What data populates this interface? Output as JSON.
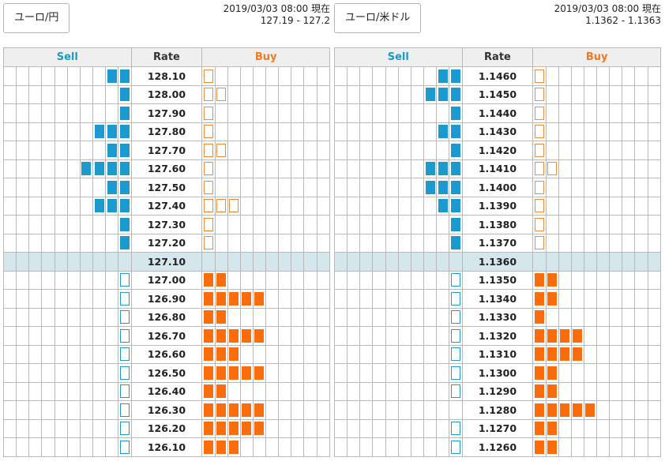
{
  "headers": {
    "sell": "Sell",
    "rate": "Rate",
    "buy": "Buy"
  },
  "colors": {
    "sell": "#1b9ad0",
    "buy": "#fb6c0c",
    "mid_row": "#d5e7ec",
    "header_bg": "#efefef"
  },
  "panels": [
    {
      "name": "eurjpy",
      "label": "ユーロ/円",
      "timestamp": "2019/03/03 08:00 現在",
      "bidask": "127.19 - 127.2",
      "rows": [
        {
          "rate": "128.10",
          "sell": 2,
          "buy": 1,
          "style": "upper"
        },
        {
          "rate": "128.00",
          "sell": 1,
          "buy": 2,
          "style": "upper"
        },
        {
          "rate": "127.90",
          "sell": 1,
          "buy": 1,
          "style": "upper"
        },
        {
          "rate": "127.80",
          "sell": 3,
          "buy": 1,
          "style": "upper"
        },
        {
          "rate": "127.70",
          "sell": 2,
          "buy": 2,
          "style": "upper"
        },
        {
          "rate": "127.60",
          "sell": 4,
          "buy": 1,
          "style": "upper"
        },
        {
          "rate": "127.50",
          "sell": 2,
          "buy": 1,
          "style": "upper"
        },
        {
          "rate": "127.40",
          "sell": 3,
          "buy": 3,
          "style": "upper"
        },
        {
          "rate": "127.30",
          "sell": 1,
          "buy": 1,
          "style": "upper"
        },
        {
          "rate": "127.20",
          "sell": 1,
          "buy": 1,
          "style": "upper"
        },
        {
          "rate": "127.10",
          "sell": 0,
          "buy": 0,
          "style": "mid"
        },
        {
          "rate": "127.00",
          "sell": 1,
          "buy": 2,
          "style": "lower"
        },
        {
          "rate": "126.90",
          "sell": 1,
          "buy": 5,
          "style": "lower"
        },
        {
          "rate": "126.80",
          "sell": 1,
          "buy": 2,
          "style": "lower"
        },
        {
          "rate": "126.70",
          "sell": 1,
          "buy": 5,
          "style": "lower"
        },
        {
          "rate": "126.60",
          "sell": 1,
          "buy": 3,
          "style": "lower"
        },
        {
          "rate": "126.50",
          "sell": 1,
          "buy": 5,
          "style": "lower"
        },
        {
          "rate": "126.40",
          "sell": 1,
          "buy": 2,
          "style": "lower"
        },
        {
          "rate": "126.30",
          "sell": 1,
          "buy": 5,
          "style": "lower"
        },
        {
          "rate": "126.20",
          "sell": 1,
          "buy": 5,
          "style": "lower"
        },
        {
          "rate": "126.10",
          "sell": 1,
          "buy": 3,
          "style": "lower"
        }
      ]
    },
    {
      "name": "eurusd",
      "label": "ユーロ/米ドル",
      "timestamp": "2019/03/03 08:00 現在",
      "bidask": "1.1362 - 1.1363",
      "rows": [
        {
          "rate": "1.1460",
          "sell": 2,
          "buy": 1,
          "style": "upper"
        },
        {
          "rate": "1.1450",
          "sell": 3,
          "buy": 1,
          "style": "upper"
        },
        {
          "rate": "1.1440",
          "sell": 1,
          "buy": 1,
          "style": "upper"
        },
        {
          "rate": "1.1430",
          "sell": 2,
          "buy": 1,
          "style": "upper"
        },
        {
          "rate": "1.1420",
          "sell": 1,
          "buy": 1,
          "style": "upper"
        },
        {
          "rate": "1.1410",
          "sell": 3,
          "buy": 2,
          "style": "upper"
        },
        {
          "rate": "1.1400",
          "sell": 3,
          "buy": 1,
          "style": "upper"
        },
        {
          "rate": "1.1390",
          "sell": 2,
          "buy": 1,
          "style": "upper"
        },
        {
          "rate": "1.1380",
          "sell": 1,
          "buy": 1,
          "style": "upper"
        },
        {
          "rate": "1.1370",
          "sell": 1,
          "buy": 1,
          "style": "upper"
        },
        {
          "rate": "1.1360",
          "sell": 0,
          "buy": 0,
          "style": "mid"
        },
        {
          "rate": "1.1350",
          "sell": 1,
          "buy": 2,
          "style": "lower"
        },
        {
          "rate": "1.1340",
          "sell": 1,
          "buy": 2,
          "style": "lower"
        },
        {
          "rate": "1.1330",
          "sell": 1,
          "buy": 1,
          "style": "lower"
        },
        {
          "rate": "1.1320",
          "sell": 1,
          "buy": 4,
          "style": "lower"
        },
        {
          "rate": "1.1310",
          "sell": 1,
          "buy": 4,
          "style": "lower"
        },
        {
          "rate": "1.1300",
          "sell": 1,
          "buy": 2,
          "style": "lower"
        },
        {
          "rate": "1.1290",
          "sell": 1,
          "buy": 2,
          "style": "lower"
        },
        {
          "rate": "1.1280",
          "sell": 0,
          "buy": 5,
          "style": "lower"
        },
        {
          "rate": "1.1270",
          "sell": 1,
          "buy": 2,
          "style": "lower"
        },
        {
          "rate": "1.1260",
          "sell": 1,
          "buy": 2,
          "style": "lower"
        }
      ]
    }
  ]
}
